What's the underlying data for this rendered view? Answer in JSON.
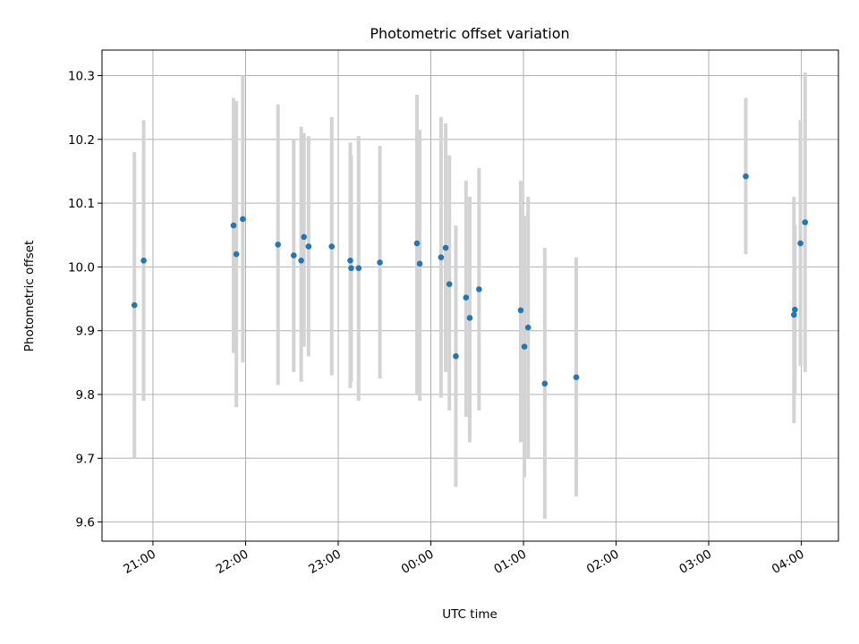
{
  "chart_data": {
    "type": "scatter",
    "title": "Photometric offset variation",
    "xlabel": "UTC time",
    "ylabel": "Photometric offset",
    "x_ticks": [
      {
        "hour": 21,
        "label": "21:00"
      },
      {
        "hour": 22,
        "label": "22:00"
      },
      {
        "hour": 23,
        "label": "23:00"
      },
      {
        "hour": 24,
        "label": "00:00"
      },
      {
        "hour": 25,
        "label": "01:00"
      },
      {
        "hour": 26,
        "label": "02:00"
      },
      {
        "hour": 27,
        "label": "03:00"
      },
      {
        "hour": 28,
        "label": "04:00"
      }
    ],
    "y_ticks": [
      {
        "value": 9.6,
        "label": "9.6"
      },
      {
        "value": 9.7,
        "label": "9.7"
      },
      {
        "value": 9.8,
        "label": "9.8"
      },
      {
        "value": 9.9,
        "label": "9.9"
      },
      {
        "value": 10.0,
        "label": "10.0"
      },
      {
        "value": 10.1,
        "label": "10.1"
      },
      {
        "value": 10.2,
        "label": "10.2"
      },
      {
        "value": 10.3,
        "label": "10.3"
      }
    ],
    "xlim": [
      20.45,
      28.4
    ],
    "ylim": [
      9.57,
      10.34
    ],
    "grid": true,
    "point_color": "#1f77b4",
    "errorbar_color": "#d3d3d3",
    "points": [
      {
        "x": 20.8,
        "y": 9.94,
        "lo": 9.7,
        "hi": 10.18
      },
      {
        "x": 20.9,
        "y": 10.01,
        "lo": 9.79,
        "hi": 10.23
      },
      {
        "x": 21.87,
        "y": 10.065,
        "lo": 9.865,
        "hi": 10.265
      },
      {
        "x": 21.9,
        "y": 10.02,
        "lo": 9.78,
        "hi": 10.26
      },
      {
        "x": 21.97,
        "y": 10.075,
        "lo": 9.85,
        "hi": 10.3
      },
      {
        "x": 22.35,
        "y": 10.035,
        "lo": 9.815,
        "hi": 10.255
      },
      {
        "x": 22.52,
        "y": 10.018,
        "lo": 9.835,
        "hi": 10.2
      },
      {
        "x": 22.6,
        "y": 10.01,
        "lo": 9.82,
        "hi": 10.22
      },
      {
        "x": 22.63,
        "y": 10.047,
        "lo": 9.875,
        "hi": 10.21
      },
      {
        "x": 22.68,
        "y": 10.032,
        "lo": 9.86,
        "hi": 10.205
      },
      {
        "x": 22.93,
        "y": 10.032,
        "lo": 9.83,
        "hi": 10.235
      },
      {
        "x": 23.13,
        "y": 10.01,
        "lo": 9.81,
        "hi": 10.195
      },
      {
        "x": 23.14,
        "y": 9.998,
        "lo": 9.82,
        "hi": 10.175
      },
      {
        "x": 23.22,
        "y": 9.998,
        "lo": 9.79,
        "hi": 10.205
      },
      {
        "x": 23.45,
        "y": 10.007,
        "lo": 9.825,
        "hi": 10.19
      },
      {
        "x": 23.85,
        "y": 10.037,
        "lo": 9.8,
        "hi": 10.27
      },
      {
        "x": 23.88,
        "y": 10.005,
        "lo": 9.79,
        "hi": 10.215
      },
      {
        "x": 24.11,
        "y": 10.015,
        "lo": 9.795,
        "hi": 10.235
      },
      {
        "x": 24.16,
        "y": 10.03,
        "lo": 9.835,
        "hi": 10.225
      },
      {
        "x": 24.2,
        "y": 9.973,
        "lo": 9.775,
        "hi": 10.175
      },
      {
        "x": 24.27,
        "y": 9.86,
        "lo": 9.655,
        "hi": 10.065
      },
      {
        "x": 24.38,
        "y": 9.952,
        "lo": 9.765,
        "hi": 10.135
      },
      {
        "x": 24.42,
        "y": 9.92,
        "lo": 9.725,
        "hi": 10.11
      },
      {
        "x": 24.52,
        "y": 9.965,
        "lo": 9.775,
        "hi": 10.155
      },
      {
        "x": 24.97,
        "y": 9.932,
        "lo": 9.725,
        "hi": 10.135
      },
      {
        "x": 25.01,
        "y": 9.875,
        "lo": 9.67,
        "hi": 10.08
      },
      {
        "x": 25.05,
        "y": 9.905,
        "lo": 9.7,
        "hi": 10.11
      },
      {
        "x": 25.23,
        "y": 9.817,
        "lo": 9.605,
        "hi": 10.03
      },
      {
        "x": 25.57,
        "y": 9.827,
        "lo": 9.64,
        "hi": 10.015
      },
      {
        "x": 27.4,
        "y": 10.142,
        "lo": 10.02,
        "hi": 10.265
      },
      {
        "x": 27.92,
        "y": 9.925,
        "lo": 9.755,
        "hi": 10.11
      },
      {
        "x": 27.93,
        "y": 9.933,
        "lo": 9.8,
        "hi": 10.065
      },
      {
        "x": 27.99,
        "y": 10.037,
        "lo": 9.845,
        "hi": 10.23
      },
      {
        "x": 28.04,
        "y": 10.07,
        "lo": 9.835,
        "hi": 10.305
      }
    ]
  }
}
